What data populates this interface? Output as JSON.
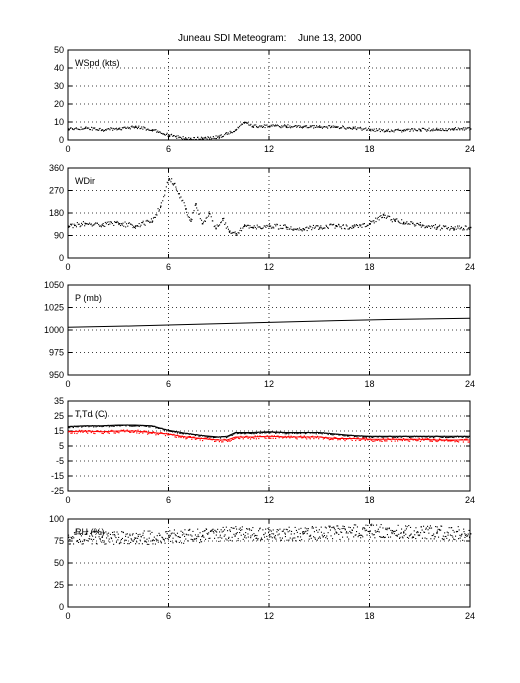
{
  "header": {
    "title": "Juneau SDI Meteogram:",
    "date": "June 13, 2000"
  },
  "chart_data": [
    {
      "type": "scatter",
      "label": "WSpd (kts)",
      "ylim": [
        0,
        50
      ],
      "yticks": [
        0,
        10,
        20,
        30,
        40,
        50
      ],
      "xlim": [
        0,
        24
      ],
      "xticks": [
        0,
        6,
        12,
        18,
        24
      ],
      "grid": true,
      "series": [
        {
          "color": "#000000",
          "x": [
            0,
            1,
            2,
            3,
            4,
            5,
            6,
            7,
            8,
            9,
            10,
            10.5,
            11,
            12,
            13,
            14,
            15,
            16,
            17,
            18,
            19,
            20,
            21,
            22,
            23,
            24
          ],
          "values": [
            6.5,
            7,
            6,
            6.5,
            7.5,
            6,
            3,
            1,
            1,
            2,
            6,
            10,
            8,
            8,
            8,
            7.5,
            7.5,
            7.5,
            7,
            6,
            5.5,
            5.5,
            6,
            6,
            6.5,
            6.5
          ]
        }
      ]
    },
    {
      "type": "scatter",
      "label": "WDir",
      "ylim": [
        0,
        360
      ],
      "yticks": [
        0,
        90,
        180,
        270,
        360
      ],
      "xlim": [
        0,
        24
      ],
      "xticks": [
        0,
        6,
        12,
        18,
        24
      ],
      "grid": true,
      "series": [
        {
          "color": "#000000",
          "x": [
            0,
            1,
            2,
            3,
            4,
            5,
            5.5,
            6,
            6.3,
            6.6,
            7,
            7.3,
            7.6,
            8,
            8.4,
            8.8,
            9.2,
            9.6,
            10,
            10.5,
            11,
            12,
            13,
            14,
            15,
            16,
            17,
            18,
            18.8,
            19.5,
            20,
            21,
            22,
            23,
            24
          ],
          "values": [
            130,
            140,
            135,
            140,
            130,
            150,
            210,
            320,
            300,
            260,
            200,
            150,
            220,
            140,
            180,
            120,
            160,
            110,
            100,
            130,
            125,
            130,
            125,
            120,
            125,
            130,
            125,
            140,
            175,
            150,
            145,
            135,
            125,
            120,
            125
          ]
        }
      ]
    },
    {
      "type": "line",
      "label": "P (mb)",
      "ylim": [
        950,
        1050
      ],
      "yticks": [
        950,
        975,
        1000,
        1025,
        1050
      ],
      "xlim": [
        0,
        24
      ],
      "xticks": [
        0,
        6,
        12,
        18,
        24
      ],
      "grid": true,
      "series": [
        {
          "color": "#000000",
          "x": [
            0,
            4,
            8,
            12,
            16,
            20,
            24
          ],
          "values": [
            1003,
            1004.5,
            1006.5,
            1008.5,
            1010.5,
            1012,
            1013
          ]
        }
      ]
    },
    {
      "type": "line",
      "label": "T,Td (C)",
      "ylim": [
        -25,
        35
      ],
      "yticks": [
        -25,
        -15,
        -5,
        5,
        15,
        25,
        35
      ],
      "xlim": [
        0,
        24
      ],
      "xticks": [
        0,
        6,
        12,
        18,
        24
      ],
      "grid": true,
      "series": [
        {
          "color": "#000000",
          "x": [
            0,
            1,
            2,
            3,
            4,
            5,
            6,
            7,
            8,
            9,
            9.5,
            10,
            11,
            12,
            13,
            14,
            15,
            16,
            17,
            18,
            19,
            20,
            21,
            22,
            23,
            24
          ],
          "values": [
            18,
            18.5,
            18.5,
            19,
            19,
            18.5,
            15.5,
            13.5,
            12,
            11,
            11.5,
            14,
            14,
            14.5,
            14,
            14,
            14,
            13,
            12,
            11.5,
            11.5,
            11.5,
            11.5,
            11.5,
            11.5,
            11.5
          ]
        },
        {
          "color": "#ff0000",
          "x": [
            0,
            1,
            2,
            3,
            4,
            5,
            6,
            7,
            8,
            9,
            9.5,
            10,
            11,
            12,
            13,
            14,
            15,
            16,
            17,
            18,
            19,
            20,
            21,
            22,
            23,
            24
          ],
          "values": [
            14.5,
            15,
            14.5,
            15,
            15,
            14,
            13,
            11,
            10,
            9,
            9,
            11,
            11,
            11.5,
            11,
            11,
            11,
            10,
            10,
            9.5,
            9.5,
            9.5,
            9.5,
            9,
            9,
            9
          ]
        }
      ]
    },
    {
      "type": "scatter",
      "label": "RH (%)",
      "ylim": [
        0,
        100
      ],
      "yticks": [
        0,
        25,
        50,
        75,
        100
      ],
      "xlim": [
        0,
        24
      ],
      "xticks": [
        0,
        6,
        12,
        18,
        24
      ],
      "grid": true,
      "series": [
        {
          "color": "#000000",
          "x": [
            0,
            2,
            4,
            6,
            8,
            10,
            12,
            14,
            16,
            18,
            20,
            22,
            24
          ],
          "values": [
            80,
            80,
            79,
            80,
            82,
            84,
            83,
            84,
            85,
            87,
            86,
            85,
            84
          ]
        }
      ]
    }
  ]
}
